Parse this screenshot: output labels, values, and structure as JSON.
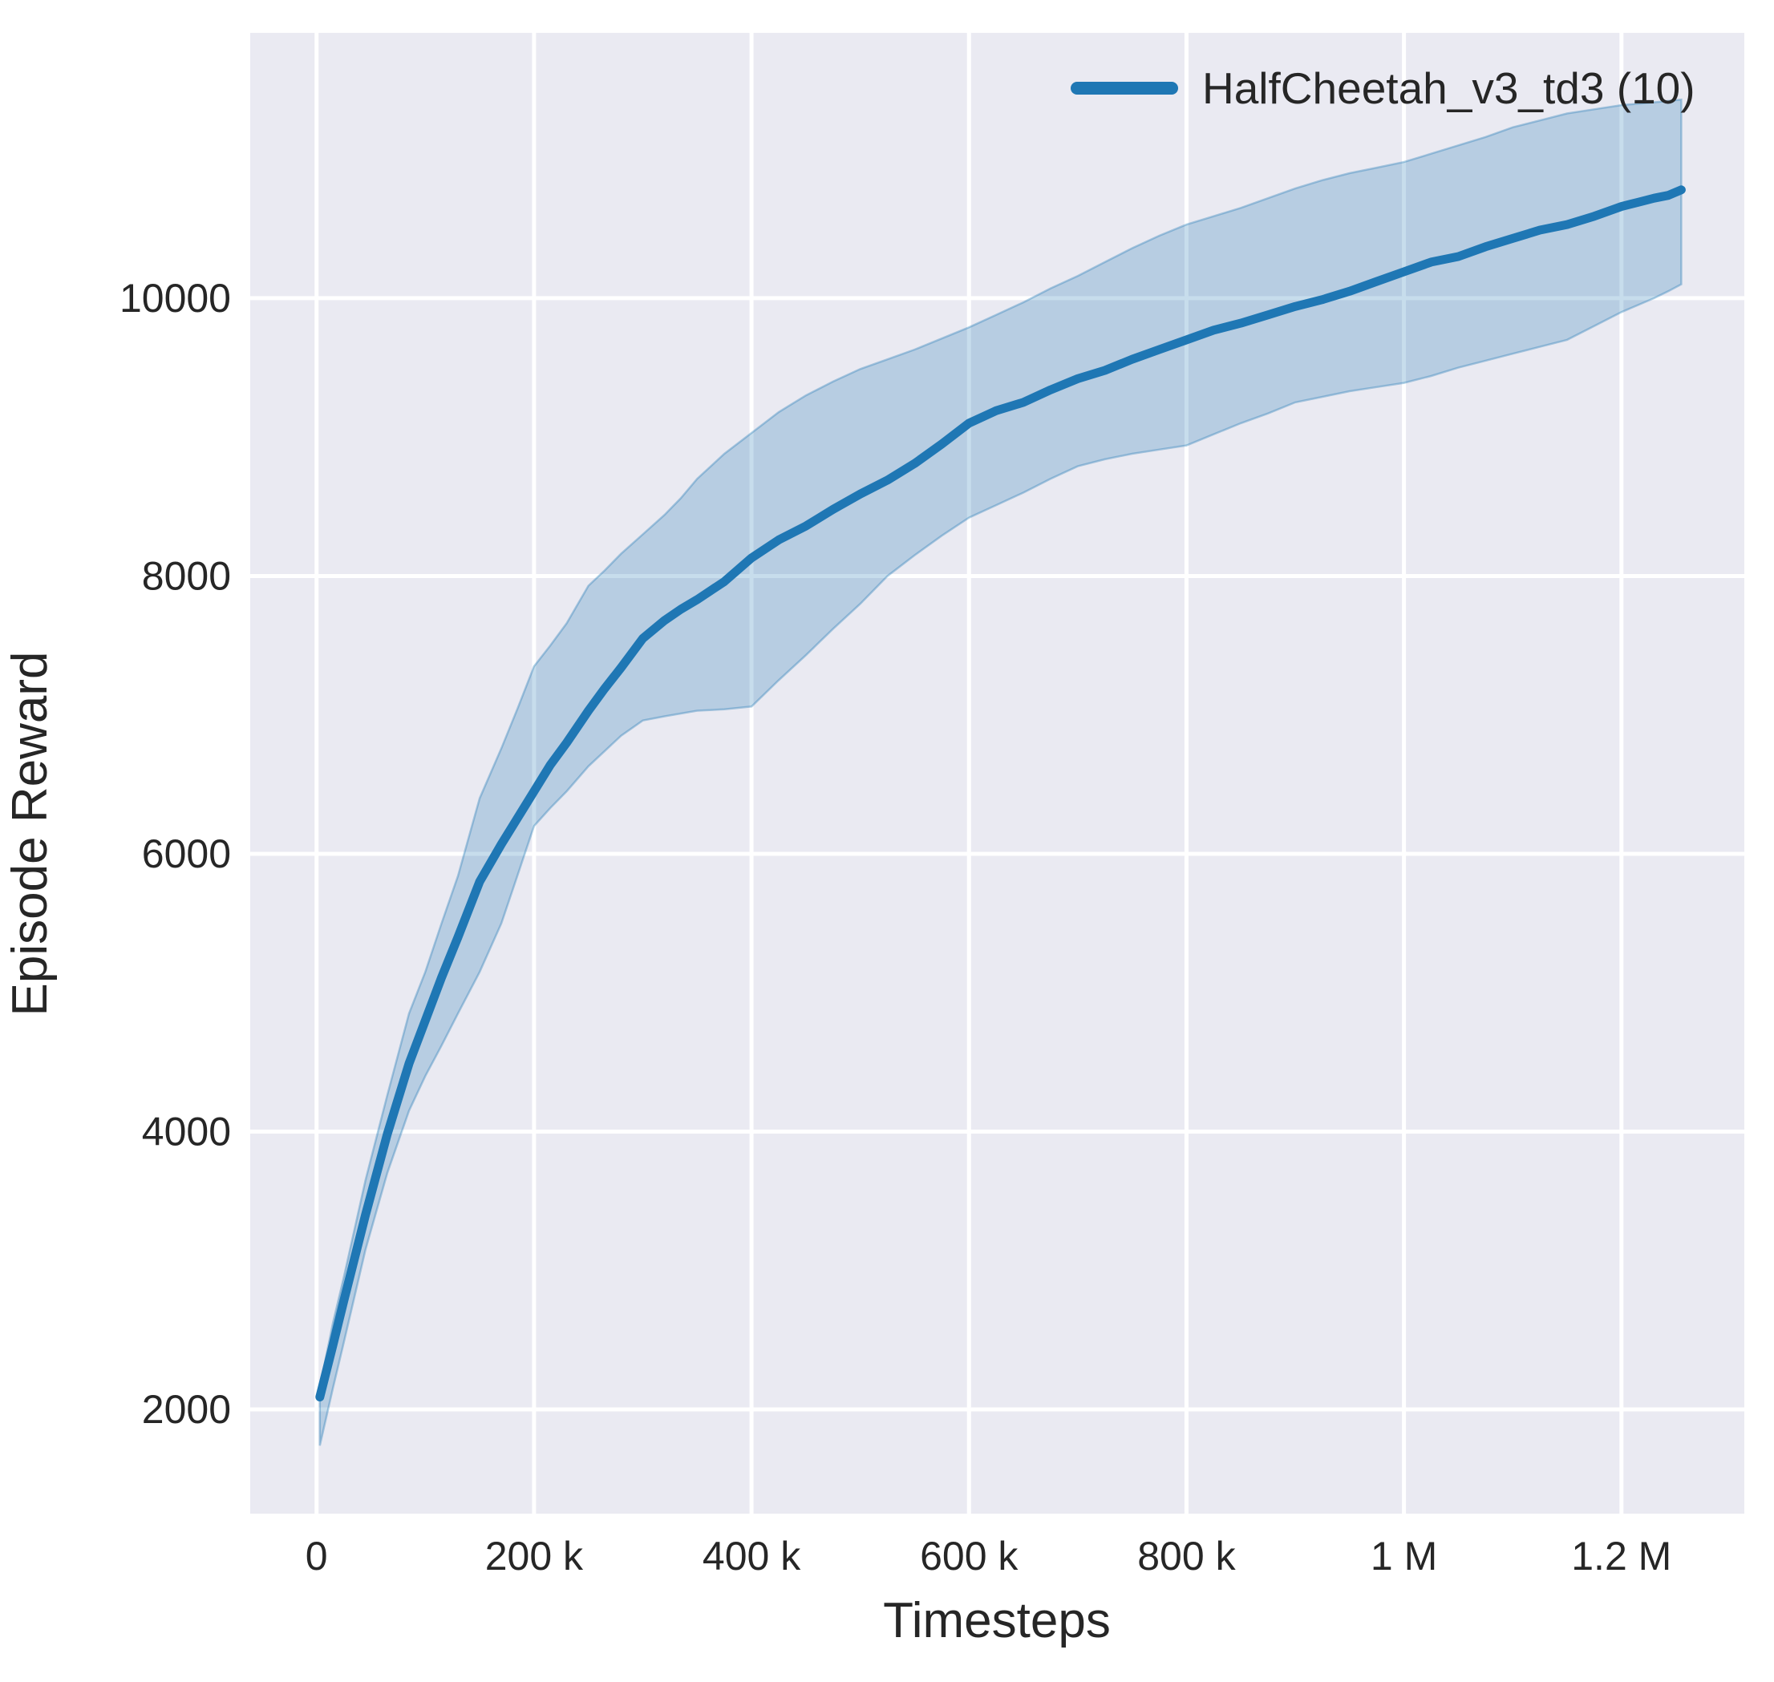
{
  "chart_data": {
    "type": "line",
    "title": "",
    "xlabel": "Timesteps",
    "ylabel": "Episode Reward",
    "xlim": [
      -61000,
      1313000
    ],
    "ylim": [
      1250,
      11910
    ],
    "grid": true,
    "legend": {
      "position": "upper right",
      "label": "HalfCheetah_v3_td3 (10)"
    },
    "colors": {
      "line": "#1f77b4",
      "band_fill": "rgba(31,119,180,0.25)",
      "band_edge": "rgba(31,119,180,0.35)",
      "plot_bg": "#eaeaf2",
      "grid": "#ffffff",
      "text": "#262626"
    },
    "x_ticks": [
      {
        "value": 0,
        "label": "0"
      },
      {
        "value": 200000,
        "label": "200 k"
      },
      {
        "value": 400000,
        "label": "400 k"
      },
      {
        "value": 600000,
        "label": "600 k"
      },
      {
        "value": 800000,
        "label": "800 k"
      },
      {
        "value": 1000000,
        "label": "1 M"
      },
      {
        "value": 1200000,
        "label": "1.2 M"
      }
    ],
    "y_ticks": [
      {
        "value": 2000,
        "label": "2000"
      },
      {
        "value": 4000,
        "label": "4000"
      },
      {
        "value": 6000,
        "label": "6000"
      },
      {
        "value": 8000,
        "label": "8000"
      },
      {
        "value": 10000,
        "label": "10000"
      }
    ],
    "series": [
      {
        "name": "HalfCheetah_v3_td3",
        "runs": 10,
        "x": [
          3000,
          15000,
          25000,
          45000,
          65000,
          85000,
          100000,
          115000,
          130000,
          150000,
          170000,
          185000,
          200000,
          215000,
          230000,
          250000,
          265000,
          280000,
          300000,
          320000,
          335000,
          350000,
          375000,
          400000,
          425000,
          450000,
          475000,
          500000,
          525000,
          550000,
          575000,
          600000,
          625000,
          650000,
          675000,
          700000,
          725000,
          750000,
          775000,
          800000,
          825000,
          850000,
          875000,
          900000,
          925000,
          950000,
          975000,
          1000000,
          1025000,
          1050000,
          1075000,
          1100000,
          1125000,
          1150000,
          1175000,
          1200000,
          1215000,
          1230000,
          1243000,
          1255000
        ],
        "mean": [
          2090,
          2460,
          2780,
          3400,
          3980,
          4490,
          4800,
          5110,
          5400,
          5800,
          6070,
          6260,
          6450,
          6640,
          6800,
          7030,
          7190,
          7340,
          7550,
          7680,
          7760,
          7830,
          7960,
          8130,
          8260,
          8360,
          8480,
          8590,
          8690,
          8810,
          8950,
          9100,
          9190,
          9250,
          9340,
          9420,
          9480,
          9560,
          9630,
          9700,
          9770,
          9820,
          9880,
          9940,
          9990,
          10050,
          10120,
          10190,
          10260,
          10300,
          10370,
          10430,
          10490,
          10530,
          10590,
          10660,
          10690,
          10720,
          10740,
          10780
        ],
        "band_low": [
          1740,
          2150,
          2480,
          3150,
          3700,
          4150,
          4400,
          4620,
          4850,
          5150,
          5500,
          5850,
          6200,
          6330,
          6450,
          6630,
          6740,
          6850,
          6960,
          6990,
          7010,
          7030,
          7040,
          7060,
          7250,
          7430,
          7620,
          7800,
          8000,
          8150,
          8290,
          8420,
          8510,
          8600,
          8700,
          8790,
          8840,
          8880,
          8910,
          8940,
          9020,
          9100,
          9170,
          9250,
          9290,
          9330,
          9360,
          9390,
          9440,
          9500,
          9550,
          9600,
          9650,
          9700,
          9800,
          9900,
          9950,
          10000,
          10050,
          10100
        ],
        "band_high": [
          2160,
          2620,
          2950,
          3650,
          4260,
          4850,
          5150,
          5500,
          5840,
          6400,
          6760,
          7050,
          7350,
          7500,
          7660,
          7930,
          8040,
          8160,
          8300,
          8440,
          8560,
          8700,
          8880,
          9030,
          9180,
          9300,
          9400,
          9490,
          9560,
          9630,
          9710,
          9790,
          9880,
          9970,
          10070,
          10160,
          10260,
          10360,
          10450,
          10530,
          10590,
          10650,
          10720,
          10790,
          10850,
          10900,
          10940,
          10980,
          11040,
          11100,
          11160,
          11230,
          11280,
          11330,
          11360,
          11390,
          11400,
          11410,
          11420,
          11430
        ]
      }
    ]
  }
}
